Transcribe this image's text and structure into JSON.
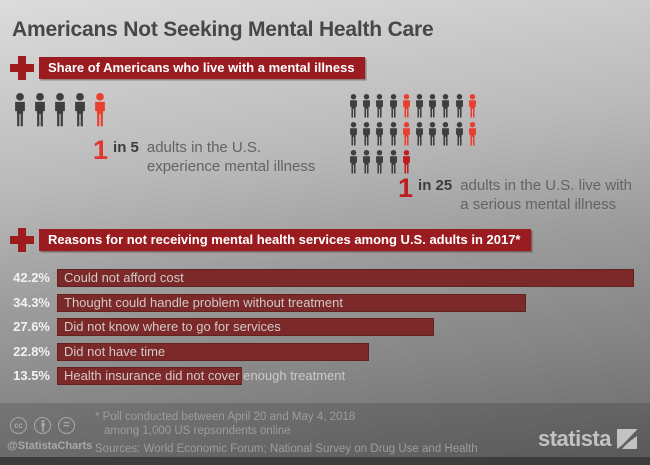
{
  "title": "Americans Not Seeking Mental Health Care",
  "colors": {
    "banner_red": "#9b1c20",
    "bar_red": "#7b2929",
    "picto": {
      "g": "#3e3e3e",
      "r": "#e8402e",
      "d": "#bf1d1f"
    },
    "title_gray": "#474747"
  },
  "section_illness": {
    "header": "Share of Americans who live with a mental illness",
    "stat_1in5": {
      "number": "1",
      "ratio": "in 5",
      "line1": "adults in the U.S.",
      "line2": "experience mental illness"
    },
    "stat_1in25": {
      "number": "1",
      "ratio": "in 25",
      "line1": "adults in the U.S. live with",
      "line2": "a serious mental illness"
    }
  },
  "pictograms": {
    "five": {
      "rows": [
        [
          "g",
          "g",
          "g",
          "g",
          "r"
        ]
      ]
    },
    "twentyfive": {
      "rows": [
        [
          "g",
          "g",
          "g",
          "g",
          "r",
          "g",
          "g",
          "g",
          "g",
          "r"
        ],
        [
          "g",
          "g",
          "g",
          "g",
          "r",
          "g",
          "g",
          "g",
          "g",
          "r"
        ],
        [
          "g",
          "g",
          "g",
          "g",
          "d"
        ]
      ]
    }
  },
  "section_reasons": {
    "header": "Reasons for not receiving mental health services among U.S. adults in 2017*"
  },
  "chart_data": {
    "type": "bar",
    "orientation": "horizontal",
    "title": "Reasons for not receiving mental health services among U.S. adults in 2017*",
    "categories": [
      "Could not afford cost",
      "Thought could handle problem without treatment",
      "Did not know where to go for services",
      "Did not have time",
      "Health insurance did not cover enough treatment"
    ],
    "values": [
      42.2,
      34.3,
      27.6,
      22.8,
      13.5
    ],
    "value_labels": [
      "42.2%",
      "34.3%",
      "27.6%",
      "22.8%",
      "13.5%"
    ],
    "xlim": [
      0,
      45
    ],
    "bar_color": "#7b2929",
    "legend": "none",
    "grid": "off"
  },
  "footer": {
    "cc_icons": [
      "cc",
      "person",
      "equals"
    ],
    "handle": "@StatistaCharts",
    "footnote_line1": "* Poll conducted between April 20 and May 4, 2018",
    "footnote_line2": "among 1,000 US repsondents online",
    "sources": "Sources: World Economic Forum; National Survey on Drug Use and Health",
    "brand": "statista"
  }
}
